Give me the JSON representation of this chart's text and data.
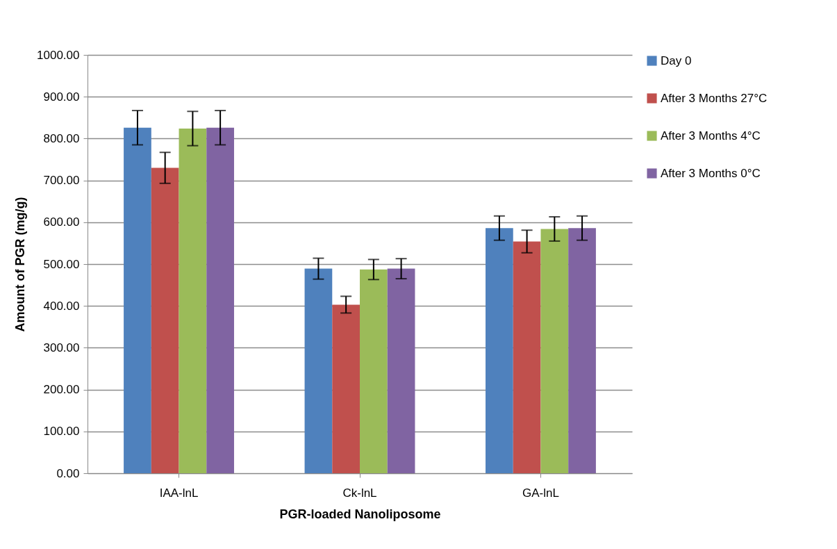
{
  "chart_data": {
    "type": "bar",
    "xlabel": "PGR-loaded Nanoliposome",
    "ylabel": "Amount of PGR (mg/g)",
    "categories": [
      "IAA-lnL",
      "Ck-lnL",
      "GA-lnL"
    ],
    "series": [
      {
        "name": "Day 0",
        "color": "#4f81bd",
        "values": [
          826,
          489,
          586
        ],
        "errors": [
          41,
          25,
          29
        ]
      },
      {
        "name": "After 3 Months 27°C",
        "color": "#c0504d",
        "values": [
          730,
          403,
          554
        ],
        "errors": [
          37,
          20,
          27
        ]
      },
      {
        "name": "After 3 Months 4°C",
        "color": "#9bbb59",
        "values": [
          824,
          487,
          584
        ],
        "errors": [
          41,
          24,
          29
        ]
      },
      {
        "name": "After 3 Months 0°C",
        "color": "#8064a2",
        "values": [
          826,
          489,
          586
        ],
        "errors": [
          41,
          24,
          29
        ]
      }
    ],
    "ylim": [
      0,
      1000
    ],
    "yticks": [
      {
        "value": 0,
        "label": "0.00"
      },
      {
        "value": 100,
        "label": "100.00"
      },
      {
        "value": 200,
        "label": "200.00"
      },
      {
        "value": 300,
        "label": "300.00"
      },
      {
        "value": 400,
        "label": "400.00"
      },
      {
        "value": 500,
        "label": "500.00"
      },
      {
        "value": 600,
        "label": "600.00"
      },
      {
        "value": 700,
        "label": "700.00"
      },
      {
        "value": 800,
        "label": "800.00"
      },
      {
        "value": 900,
        "label": "900.00"
      },
      {
        "value": 1000,
        "label": "1000.00"
      }
    ],
    "grid": "y",
    "legend": "right"
  }
}
